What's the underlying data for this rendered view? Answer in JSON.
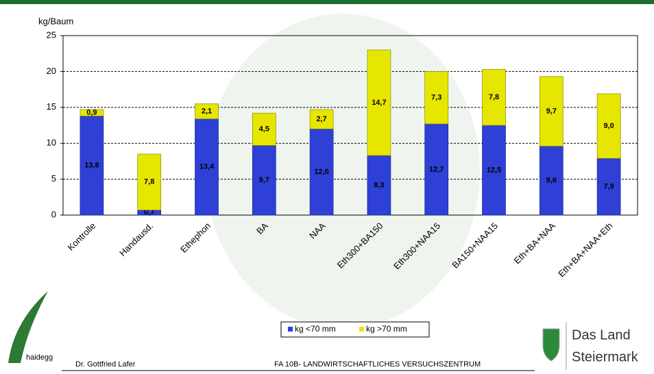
{
  "chart_data": {
    "type": "stacked_bar",
    "y_label": "kg/Baum",
    "categories": [
      "Kontrolle",
      "Handausd.",
      "Ethephon",
      "BA",
      "NAA",
      "Eth300+BA150",
      "Eth300+NAA15",
      "BA150+NAA15",
      "Eth+BA+NAA",
      "Eth+BA+NAA+Eth"
    ],
    "series": [
      {
        "name": "kg <70 mm",
        "color": "#2e40d6",
        "values": [
          13.8,
          0.7,
          13.4,
          9.7,
          12.0,
          8.3,
          12.7,
          12.5,
          9.6,
          7.9
        ],
        "value_labels": [
          "13,8",
          "0,7",
          "13,4",
          "9,7",
          "12,0",
          "8,3",
          "12,7",
          "12,5",
          "9,6",
          "7,9"
        ]
      },
      {
        "name": "kg >70 mm",
        "color": "#e6e600",
        "values": [
          0.9,
          7.8,
          2.1,
          4.5,
          2.7,
          14.7,
          7.3,
          7.8,
          9.7,
          9.0
        ],
        "value_labels": [
          "0,9",
          "7,8",
          "2,1",
          "4,5",
          "2,7",
          "14,7",
          "7,3",
          "7,8",
          "9,7",
          "9,0"
        ]
      }
    ],
    "ylim": [
      0,
      25
    ],
    "yticks": [
      0,
      5,
      10,
      15,
      20,
      25
    ],
    "grid": true
  },
  "footer": {
    "logo_text": "haidegg",
    "author": "Dr. Gottfried Lafer",
    "institute": "FA 10B- LANDWIRTSCHAFTLICHES VERSUCHSZENTRUM",
    "brand_line1": "Das Land",
    "brand_line2": "Steiermark"
  }
}
